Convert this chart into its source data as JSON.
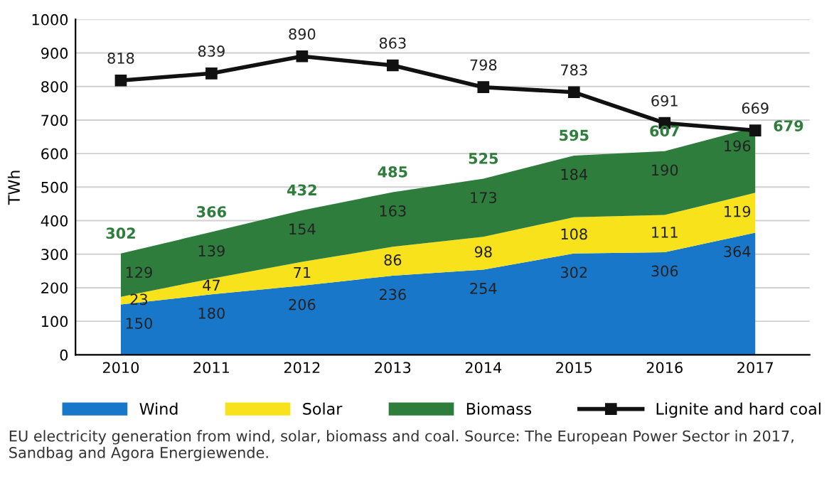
{
  "chart_data": {
    "type": "area",
    "stacked": true,
    "categories": [
      "2010",
      "2011",
      "2012",
      "2013",
      "2014",
      "2015",
      "2016",
      "2017"
    ],
    "series": [
      {
        "name": "Wind",
        "color": "#1877c9",
        "values": [
          150,
          180,
          206,
          236,
          254,
          302,
          306,
          364
        ]
      },
      {
        "name": "Solar",
        "color": "#f7e21b",
        "values": [
          23,
          47,
          71,
          86,
          98,
          108,
          111,
          119
        ]
      },
      {
        "name": "Biomass",
        "color": "#2f7d3c",
        "values": [
          129,
          139,
          154,
          163,
          173,
          184,
          190,
          196
        ]
      },
      {
        "name": "Lignite and hard coal",
        "type": "line",
        "color": "#111111",
        "marker": "square",
        "values": [
          818,
          839,
          890,
          863,
          798,
          783,
          691,
          669
        ]
      }
    ],
    "totals": [
      "302",
      "366",
      "432",
      "485",
      "525",
      "595",
      "607",
      "679"
    ],
    "data_labels": true,
    "ylabel": "TWh",
    "ylim": [
      0,
      1000
    ],
    "yticks": [
      0,
      100,
      200,
      300,
      400,
      500,
      600,
      700,
      800,
      900,
      1000
    ],
    "grid": "y",
    "legend": "bottom",
    "annotations": [
      "EU electricity generation from wind, solar, biomass and coal. Source: The European Power Sector in 2017, Sandbag and Agora Energiewende."
    ]
  }
}
